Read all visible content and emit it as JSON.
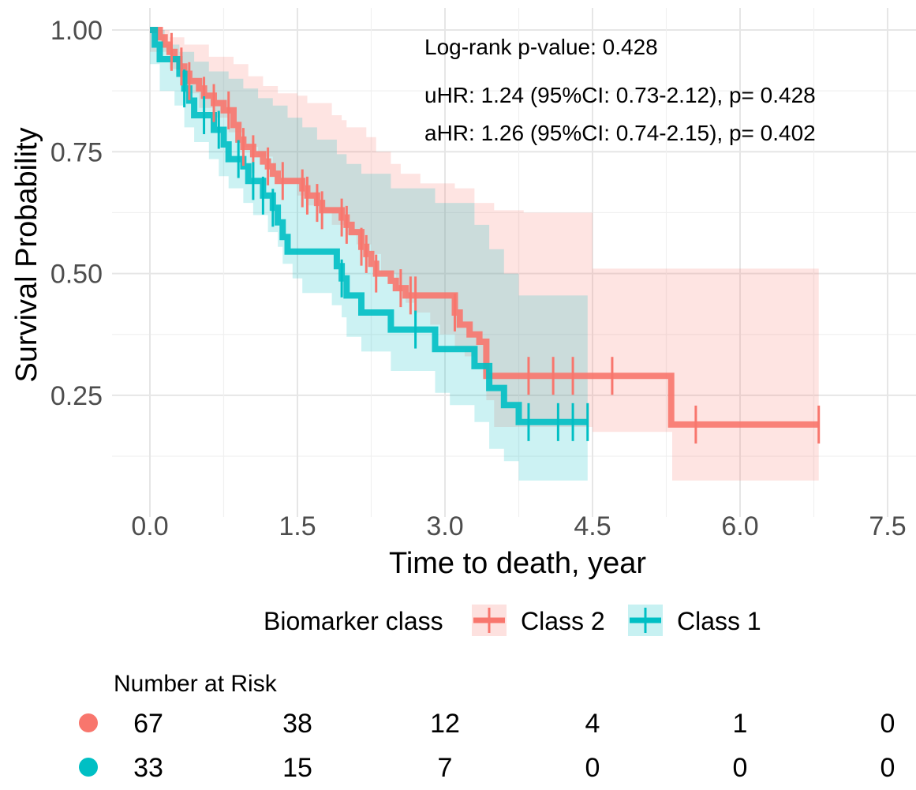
{
  "chart_data": {
    "type": "line",
    "subtype": "kaplan-meier",
    "ylabel": "Survival Probability",
    "xlabel": "Time to death, year",
    "x_ticks": [
      "0.0",
      "1.5",
      "3.0",
      "4.5",
      "6.0",
      "7.5"
    ],
    "y_ticks": [
      "0.25",
      "0.50",
      "0.75",
      "1.00"
    ],
    "xlim": [
      0,
      7.5
    ],
    "ylim": [
      0.08,
      1.0
    ],
    "grid": true,
    "annotations": [
      "Log-rank p-value: 0.428",
      "uHR: 1.24 (95%CI: 0.73-2.12), p= 0.428",
      "aHR: 1.26 (95%CI: 0.74-2.15), p= 0.402"
    ],
    "legend_title": "Biomarker class",
    "legend_position": "bottom",
    "series": [
      {
        "name": "Class 2",
        "color": "#F8766D",
        "fill": "#F8766D",
        "steps": [
          [
            0,
            1.0
          ],
          [
            0.1,
            0.985
          ],
          [
            0.15,
            0.97
          ],
          [
            0.2,
            0.955
          ],
          [
            0.25,
            0.94
          ],
          [
            0.3,
            0.925
          ],
          [
            0.35,
            0.91
          ],
          [
            0.4,
            0.895
          ],
          [
            0.5,
            0.88
          ],
          [
            0.55,
            0.865
          ],
          [
            0.65,
            0.85
          ],
          [
            0.75,
            0.835
          ],
          [
            0.85,
            0.805
          ],
          [
            0.9,
            0.775
          ],
          [
            0.95,
            0.76
          ],
          [
            1.05,
            0.745
          ],
          [
            1.15,
            0.73
          ],
          [
            1.2,
            0.72
          ],
          [
            1.25,
            0.705
          ],
          [
            1.3,
            0.69
          ],
          [
            1.55,
            0.675
          ],
          [
            1.6,
            0.66
          ],
          [
            1.7,
            0.645
          ],
          [
            1.75,
            0.63
          ],
          [
            1.95,
            0.615
          ],
          [
            2.0,
            0.6
          ],
          [
            2.05,
            0.585
          ],
          [
            2.15,
            0.555
          ],
          [
            2.2,
            0.54
          ],
          [
            2.25,
            0.52
          ],
          [
            2.3,
            0.5
          ],
          [
            2.45,
            0.485
          ],
          [
            2.5,
            0.47
          ],
          [
            2.6,
            0.455
          ],
          [
            3.1,
            0.42
          ],
          [
            3.15,
            0.395
          ],
          [
            3.25,
            0.375
          ],
          [
            3.35,
            0.36
          ],
          [
            3.42,
            0.29
          ],
          [
            5.3,
            0.19
          ]
        ],
        "end_x": 6.8,
        "ci_upper": [
          [
            0,
            1.0
          ],
          [
            0.2,
            0.985
          ],
          [
            0.35,
            0.97
          ],
          [
            0.6,
            0.945
          ],
          [
            0.85,
            0.93
          ],
          [
            1.0,
            0.905
          ],
          [
            1.15,
            0.885
          ],
          [
            1.3,
            0.87
          ],
          [
            1.5,
            0.865
          ],
          [
            1.6,
            0.85
          ],
          [
            1.85,
            0.825
          ],
          [
            1.95,
            0.815
          ],
          [
            2.0,
            0.8
          ],
          [
            2.2,
            0.78
          ],
          [
            2.3,
            0.75
          ],
          [
            2.45,
            0.725
          ],
          [
            2.55,
            0.705
          ],
          [
            2.75,
            0.685
          ],
          [
            3.1,
            0.675
          ],
          [
            3.3,
            0.645
          ],
          [
            3.5,
            0.63
          ],
          [
            3.8,
            0.625
          ],
          [
            4.45,
            0.625
          ],
          [
            4.5,
            0.51
          ],
          [
            6.8,
            0.51
          ]
        ],
        "ci_lower": [
          [
            0,
            0.955
          ],
          [
            0.2,
            0.92
          ],
          [
            0.35,
            0.87
          ],
          [
            0.5,
            0.84
          ],
          [
            0.65,
            0.82
          ],
          [
            0.8,
            0.79
          ],
          [
            0.95,
            0.76
          ],
          [
            1.1,
            0.74
          ],
          [
            1.25,
            0.71
          ],
          [
            1.35,
            0.685
          ],
          [
            1.5,
            0.66
          ],
          [
            1.6,
            0.64
          ],
          [
            1.75,
            0.625
          ],
          [
            1.85,
            0.6
          ],
          [
            2.0,
            0.58
          ],
          [
            2.1,
            0.56
          ],
          [
            2.25,
            0.54
          ],
          [
            2.35,
            0.5
          ],
          [
            2.5,
            0.465
          ],
          [
            2.6,
            0.44
          ],
          [
            2.7,
            0.42
          ],
          [
            2.85,
            0.395
          ],
          [
            2.95,
            0.375
          ],
          [
            3.1,
            0.345
          ],
          [
            3.2,
            0.33
          ],
          [
            3.3,
            0.305
          ],
          [
            3.42,
            0.24
          ],
          [
            3.5,
            0.185
          ],
          [
            4.45,
            0.185
          ],
          [
            4.5,
            0.175
          ],
          [
            5.3,
            0.175
          ],
          [
            5.31,
            0.075
          ],
          [
            6.8,
            0.075
          ]
        ],
        "censor_x": [
          0.22,
          0.32,
          0.4,
          0.55,
          0.65,
          0.8,
          0.95,
          1.05,
          1.2,
          1.35,
          1.55,
          1.6,
          1.7,
          1.75,
          1.95,
          2.0,
          2.15,
          2.2,
          2.3,
          2.55,
          2.65,
          2.7,
          3.1,
          3.85,
          4.1,
          4.3,
          4.7,
          5.55,
          6.8
        ]
      },
      {
        "name": "Class 1",
        "color": "#00BFC4",
        "fill": "#00BFC4",
        "steps": [
          [
            0,
            1.0
          ],
          [
            0.05,
            0.97
          ],
          [
            0.1,
            0.94
          ],
          [
            0.3,
            0.91
          ],
          [
            0.35,
            0.88
          ],
          [
            0.4,
            0.855
          ],
          [
            0.45,
            0.825
          ],
          [
            0.65,
            0.795
          ],
          [
            0.75,
            0.765
          ],
          [
            0.8,
            0.735
          ],
          [
            0.95,
            0.72
          ],
          [
            1.0,
            0.69
          ],
          [
            1.15,
            0.66
          ],
          [
            1.25,
            0.635
          ],
          [
            1.3,
            0.605
          ],
          [
            1.35,
            0.575
          ],
          [
            1.4,
            0.545
          ],
          [
            1.9,
            0.515
          ],
          [
            1.95,
            0.49
          ],
          [
            2.0,
            0.455
          ],
          [
            2.15,
            0.42
          ],
          [
            2.45,
            0.385
          ],
          [
            2.9,
            0.345
          ],
          [
            3.3,
            0.31
          ],
          [
            3.45,
            0.265
          ],
          [
            3.6,
            0.23
          ],
          [
            3.75,
            0.195
          ]
        ],
        "end_x": 4.45,
        "ci_upper": [
          [
            0,
            1.0
          ],
          [
            0.15,
            0.97
          ],
          [
            0.3,
            0.955
          ],
          [
            0.45,
            0.935
          ],
          [
            0.6,
            0.915
          ],
          [
            0.8,
            0.9
          ],
          [
            0.95,
            0.88
          ],
          [
            1.1,
            0.86
          ],
          [
            1.25,
            0.845
          ],
          [
            1.4,
            0.82
          ],
          [
            1.55,
            0.8
          ],
          [
            1.7,
            0.775
          ],
          [
            1.9,
            0.745
          ],
          [
            2.0,
            0.725
          ],
          [
            2.15,
            0.705
          ],
          [
            2.45,
            0.675
          ],
          [
            2.9,
            0.645
          ],
          [
            3.3,
            0.6
          ],
          [
            3.45,
            0.55
          ],
          [
            3.6,
            0.5
          ],
          [
            3.75,
            0.455
          ],
          [
            4.45,
            0.455
          ]
        ],
        "ci_lower": [
          [
            0,
            0.93
          ],
          [
            0.1,
            0.875
          ],
          [
            0.25,
            0.845
          ],
          [
            0.35,
            0.8
          ],
          [
            0.45,
            0.77
          ],
          [
            0.6,
            0.735
          ],
          [
            0.7,
            0.7
          ],
          [
            0.8,
            0.675
          ],
          [
            0.95,
            0.645
          ],
          [
            1.05,
            0.62
          ],
          [
            1.2,
            0.585
          ],
          [
            1.3,
            0.555
          ],
          [
            1.35,
            0.52
          ],
          [
            1.45,
            0.49
          ],
          [
            1.55,
            0.46
          ],
          [
            1.85,
            0.435
          ],
          [
            1.95,
            0.41
          ],
          [
            2.0,
            0.37
          ],
          [
            2.15,
            0.34
          ],
          [
            2.45,
            0.3
          ],
          [
            2.9,
            0.255
          ],
          [
            3.05,
            0.23
          ],
          [
            3.3,
            0.195
          ],
          [
            3.45,
            0.14
          ],
          [
            3.6,
            0.115
          ],
          [
            3.75,
            0.075
          ],
          [
            4.45,
            0.075
          ]
        ],
        "censor_x": [
          0.35,
          0.55,
          0.7,
          0.9,
          1.05,
          1.15,
          1.25,
          1.95,
          2.7,
          3.85,
          4.15,
          4.3,
          4.45
        ]
      }
    ],
    "risk_table": {
      "title": "Number at Risk",
      "times": [
        0,
        1.5,
        3.0,
        4.5,
        6.0,
        7.5
      ],
      "rows": [
        {
          "name": "Class 2",
          "color": "#F8766D",
          "counts": [
            "67",
            "38",
            "12",
            "4",
            "1",
            "0"
          ]
        },
        {
          "name": "Class 1",
          "color": "#00BFC4",
          "counts": [
            "33",
            "15",
            "7",
            "0",
            "0",
            "0"
          ]
        }
      ]
    }
  }
}
